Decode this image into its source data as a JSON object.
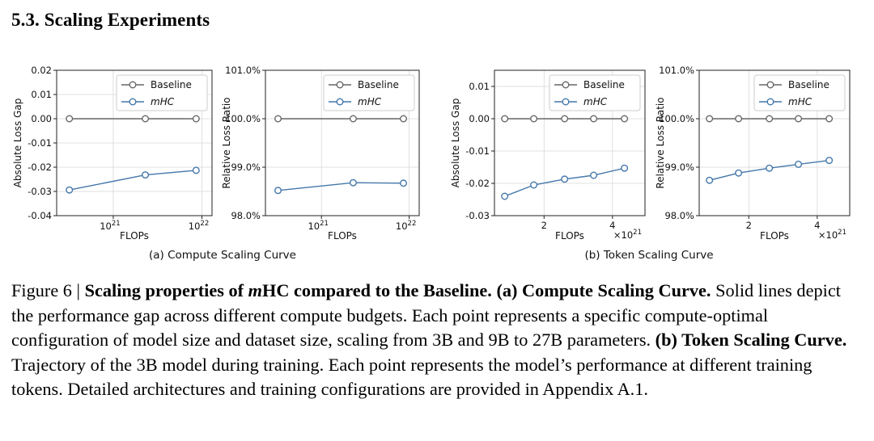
{
  "section_title": "5.3. Scaling Experiments",
  "colors": {
    "baseline": "#666666",
    "mhc": "#4477aa",
    "grid": "#d9d9d9"
  },
  "subfigure_labels": [
    "(a) Compute Scaling Curve",
    "(b) Token Scaling Curve"
  ],
  "caption": {
    "figure_label": "Figure 6 | ",
    "bold_title_part1": "Scaling properties of ",
    "bold_title_italic": "m",
    "bold_title_part2": "HC compared to the Baseline. (a) Compute Scaling Curve.",
    "text1": " Solid lines depict the performance gap across different compute budgets. Each point represents a specific compute-optimal configuration of model size and dataset size, scaling from 3B and 9B to 27B parameters. ",
    "bold_b": "(b) Token Scaling Curve.",
    "text2": " Trajectory of the 3B model during training. Each point represents the model’s performance at different training tokens. Detailed architectures and training configurations are provided in Appendix A.1."
  },
  "chart_data": [
    {
      "type": "line",
      "xlabel": "FLOPs",
      "ylabel": "Absolute Loss Gap",
      "xscale": "log",
      "xticks": [
        {
          "v": 1e+21,
          "base": "10",
          "exp": "21"
        },
        {
          "v": 1e+22,
          "base": "10",
          "exp": "22"
        }
      ],
      "yticks": [
        {
          "v": 0.02,
          "label": "0.02"
        },
        {
          "v": 0.01,
          "label": "0.01"
        },
        {
          "v": 0.0,
          "label": "0.00"
        },
        {
          "v": -0.01,
          "label": "-0.01"
        },
        {
          "v": -0.02,
          "label": "-0.02"
        },
        {
          "v": -0.03,
          "label": "-0.03"
        },
        {
          "v": -0.04,
          "label": "-0.04"
        }
      ],
      "xlim": [
        2.3e+20,
        1.3e+22
      ],
      "ylim": [
        -0.04,
        0.02
      ],
      "legend": "top-right",
      "grid": true,
      "series": [
        {
          "name": "Baseline",
          "x": [
            3.2e+20,
            2.3e+21,
            8.6e+21
          ],
          "y": [
            0.0,
            0.0,
            0.0
          ]
        },
        {
          "name": "mHC",
          "x": [
            3.2e+20,
            2.3e+21,
            8.6e+21
          ],
          "y": [
            -0.0294,
            -0.0232,
            -0.0213
          ]
        }
      ]
    },
    {
      "type": "line",
      "xlabel": "FLOPs",
      "ylabel": "Relative Loss Ratio",
      "xscale": "log",
      "xticks": [
        {
          "v": 1e+21,
          "base": "10",
          "exp": "21"
        },
        {
          "v": 1e+22,
          "base": "10",
          "exp": "22"
        }
      ],
      "yticks": [
        {
          "v": 101.0,
          "label": "101.0%"
        },
        {
          "v": 100.0,
          "label": "100.0%"
        },
        {
          "v": 99.0,
          "label": "99.0%"
        },
        {
          "v": 98.0,
          "label": "98.0%"
        }
      ],
      "xlim": [
        2.3e+20,
        1.3e+22
      ],
      "ylim": [
        98.0,
        101.0
      ],
      "legend": "top-right",
      "grid": true,
      "series": [
        {
          "name": "Baseline",
          "x": [
            3.2e+20,
            2.3e+21,
            8.6e+21
          ],
          "y": [
            100.0,
            100.0,
            100.0
          ]
        },
        {
          "name": "mHC",
          "x": [
            3.2e+20,
            2.3e+21,
            8.6e+21
          ],
          "y": [
            98.52,
            98.68,
            98.67
          ]
        }
      ]
    },
    {
      "type": "line",
      "xlabel": "FLOPs",
      "ylabel": "Absolute Loss Gap",
      "xscale": "linear",
      "x_multiplier_label": {
        "prefix": "×10",
        "exp": "21"
      },
      "xticks": [
        {
          "v": 2,
          "label": "2"
        },
        {
          "v": 4,
          "label": "4"
        }
      ],
      "yticks": [
        {
          "v": 0.01,
          "label": "0.01"
        },
        {
          "v": 0.0,
          "label": "0.00"
        },
        {
          "v": -0.01,
          "label": "-0.01"
        },
        {
          "v": -0.02,
          "label": "-0.02"
        },
        {
          "v": -0.03,
          "label": "-0.03"
        }
      ],
      "xlim": [
        0.55,
        4.95
      ],
      "ylim": [
        -0.03,
        0.015
      ],
      "legend": "top-right",
      "grid": true,
      "series": [
        {
          "name": "Baseline",
          "x": [
            0.85,
            1.7,
            2.6,
            3.45,
            4.35
          ],
          "y": [
            0.0,
            0.0,
            0.0,
            0.0,
            0.0
          ]
        },
        {
          "name": "mHC",
          "x": [
            0.85,
            1.7,
            2.6,
            3.45,
            4.35
          ],
          "y": [
            -0.024,
            -0.0205,
            -0.0187,
            -0.0175,
            -0.0153
          ]
        }
      ]
    },
    {
      "type": "line",
      "xlabel": "FLOPs",
      "ylabel": "Relative Loss Ratio",
      "xscale": "linear",
      "x_multiplier_label": {
        "prefix": "×10",
        "exp": "21"
      },
      "xticks": [
        {
          "v": 2,
          "label": "2"
        },
        {
          "v": 4,
          "label": "4"
        }
      ],
      "yticks": [
        {
          "v": 101.0,
          "label": "101.0%"
        },
        {
          "v": 100.0,
          "label": "100.0%"
        },
        {
          "v": 99.0,
          "label": "99.0%"
        },
        {
          "v": 98.0,
          "label": "98.0%"
        }
      ],
      "xlim": [
        0.55,
        4.95
      ],
      "ylim": [
        98.0,
        101.0
      ],
      "legend": "top-right",
      "grid": true,
      "series": [
        {
          "name": "Baseline",
          "x": [
            0.85,
            1.7,
            2.6,
            3.45,
            4.35
          ],
          "y": [
            100.0,
            100.0,
            100.0,
            100.0,
            100.0
          ]
        },
        {
          "name": "mHC",
          "x": [
            0.85,
            1.7,
            2.6,
            3.45,
            4.35
          ],
          "y": [
            98.73,
            98.88,
            98.98,
            99.06,
            99.14
          ]
        }
      ]
    }
  ]
}
